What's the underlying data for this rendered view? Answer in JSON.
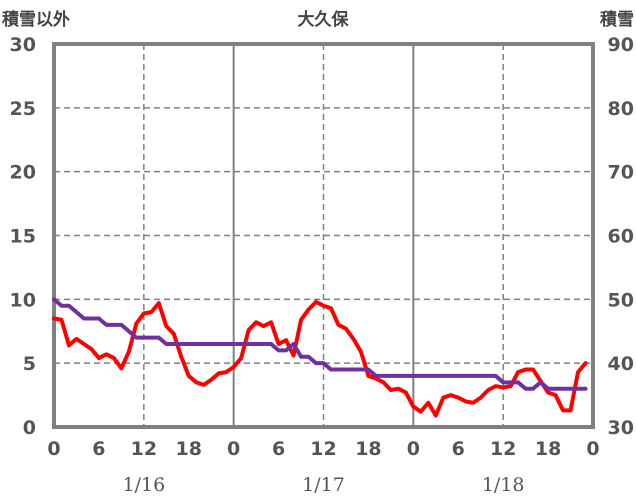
{
  "header": {
    "left_axis_title": "積雪以外",
    "center_title": "大久保",
    "right_axis_title": "積雪"
  },
  "chart_data": {
    "type": "line",
    "title": "大久保",
    "x_hours_range": [
      0,
      72
    ],
    "x_ticks": [
      "0",
      "6",
      "12",
      "18",
      "0",
      "6",
      "12",
      "18",
      "0",
      "6",
      "12",
      "18",
      "0"
    ],
    "date_labels": [
      "1/16",
      "1/17",
      "1/18"
    ],
    "y_left": {
      "label": "積雪以外",
      "range": [
        0,
        30
      ],
      "ticks": [
        "0",
        "5",
        "10",
        "15",
        "20",
        "25",
        "30"
      ]
    },
    "y_right": {
      "label": "積雪",
      "range": [
        30,
        90
      ],
      "ticks": [
        "30",
        "40",
        "50",
        "60",
        "70",
        "80",
        "90"
      ]
    },
    "grid": "solid vertical line at each 0h, dashed at 12h, dashed horizontal at each tick",
    "series": [
      {
        "axis": "left",
        "color": "#ff0000",
        "values": [
          8.5,
          8.4,
          6.4,
          6.9,
          6.5,
          6.1,
          5.4,
          5.7,
          5.4,
          4.6,
          5.9,
          8.1,
          8.9,
          9.0,
          9.7,
          7.9,
          7.3,
          5.5,
          4.0,
          3.5,
          3.3,
          3.7,
          4.2,
          4.3,
          4.7,
          5.4,
          7.6,
          8.2,
          7.9,
          8.2,
          6.5,
          6.8,
          5.6,
          8.4,
          9.2,
          9.8,
          9.5,
          9.3,
          8.0,
          7.7,
          6.9,
          5.9,
          4.0,
          3.8,
          3.5,
          2.9,
          3.0,
          2.7,
          1.6,
          1.2,
          1.9,
          0.9,
          2.3,
          2.5,
          2.3,
          2.0,
          1.9,
          2.3,
          2.9,
          3.2,
          3.1,
          3.2,
          4.3,
          4.5,
          4.5,
          3.6,
          2.7,
          2.5,
          1.3,
          1.3,
          4.3,
          5.0
        ]
      },
      {
        "axis": "right",
        "color": "#7030a0",
        "values": [
          50,
          49,
          49,
          48,
          47,
          47,
          47,
          46,
          46,
          46,
          45,
          44,
          44,
          44,
          44,
          43,
          43,
          43,
          43,
          43,
          43,
          43,
          43,
          43,
          43,
          43,
          43,
          43,
          43,
          43,
          42,
          42,
          43,
          41,
          41,
          40,
          40,
          39,
          39,
          39,
          39,
          39,
          39,
          38,
          38,
          38,
          38,
          38,
          38,
          38,
          38,
          38,
          38,
          38,
          38,
          38,
          38,
          38,
          38,
          38,
          37,
          37,
          37,
          36,
          36,
          37,
          36,
          36,
          36,
          36,
          36,
          36
        ]
      }
    ]
  }
}
